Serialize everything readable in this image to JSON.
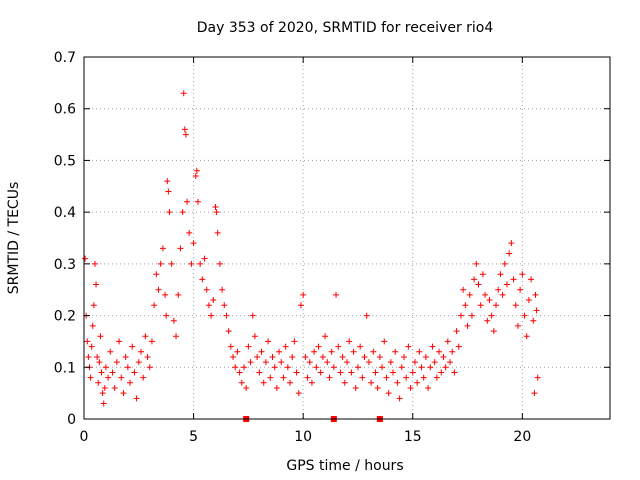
{
  "chart_data": {
    "type": "scatter",
    "title": "Day 353 of 2020, SRMTID for receiver rio4",
    "xlabel": "GPS time / hours",
    "ylabel": "SRMTID / TECUs",
    "xlim": [
      0,
      24
    ],
    "ylim": [
      0,
      0.7
    ],
    "x_ticks": [
      0,
      5,
      10,
      15,
      20
    ],
    "x_tick_labels": [
      "0",
      "5",
      "10",
      "15",
      "20"
    ],
    "y_ticks": [
      0,
      0.1,
      0.2,
      0.3,
      0.4,
      0.5,
      0.6,
      0.7
    ],
    "y_tick_labels": [
      "0",
      "0.1",
      "0.2",
      "0.3",
      "0.4",
      "0.5",
      "0.6",
      "0.7"
    ],
    "grid": true,
    "series": [
      {
        "name": "SRMTID",
        "marker": "plus",
        "color": "#ff0000",
        "points": [
          [
            0.05,
            0.31
          ],
          [
            0.1,
            0.2
          ],
          [
            0.15,
            0.15
          ],
          [
            0.2,
            0.12
          ],
          [
            0.25,
            0.1
          ],
          [
            0.3,
            0.08
          ],
          [
            0.35,
            0.14
          ],
          [
            0.4,
            0.18
          ],
          [
            0.45,
            0.22
          ],
          [
            0.5,
            0.3
          ],
          [
            0.55,
            0.26
          ],
          [
            0.6,
            0.12
          ],
          [
            0.65,
            0.07
          ],
          [
            0.7,
            0.11
          ],
          [
            0.75,
            0.16
          ],
          [
            0.8,
            0.09
          ],
          [
            0.85,
            0.05
          ],
          [
            0.9,
            0.03
          ],
          [
            0.95,
            0.06
          ],
          [
            1.0,
            0.1
          ],
          [
            1.1,
            0.08
          ],
          [
            1.2,
            0.13
          ],
          [
            1.3,
            0.09
          ],
          [
            1.4,
            0.06
          ],
          [
            1.5,
            0.11
          ],
          [
            1.6,
            0.15
          ],
          [
            1.7,
            0.08
          ],
          [
            1.8,
            0.05
          ],
          [
            1.9,
            0.12
          ],
          [
            2.0,
            0.1
          ],
          [
            2.1,
            0.07
          ],
          [
            2.2,
            0.14
          ],
          [
            2.3,
            0.09
          ],
          [
            2.4,
            0.04
          ],
          [
            2.5,
            0.11
          ],
          [
            2.6,
            0.13
          ],
          [
            2.7,
            0.08
          ],
          [
            2.8,
            0.16
          ],
          [
            2.9,
            0.12
          ],
          [
            3.0,
            0.1
          ],
          [
            3.1,
            0.15
          ],
          [
            3.2,
            0.22
          ],
          [
            3.3,
            0.28
          ],
          [
            3.4,
            0.25
          ],
          [
            3.5,
            0.3
          ],
          [
            3.6,
            0.33
          ],
          [
            3.7,
            0.24
          ],
          [
            3.75,
            0.2
          ],
          [
            3.8,
            0.46
          ],
          [
            3.85,
            0.44
          ],
          [
            3.9,
            0.4
          ],
          [
            4.0,
            0.3
          ],
          [
            4.1,
            0.19
          ],
          [
            4.2,
            0.16
          ],
          [
            4.3,
            0.24
          ],
          [
            4.4,
            0.33
          ],
          [
            4.5,
            0.4
          ],
          [
            4.55,
            0.63
          ],
          [
            4.6,
            0.56
          ],
          [
            4.65,
            0.55
          ],
          [
            4.7,
            0.42
          ],
          [
            4.8,
            0.36
          ],
          [
            4.9,
            0.3
          ],
          [
            5.0,
            0.34
          ],
          [
            5.1,
            0.47
          ],
          [
            5.15,
            0.48
          ],
          [
            5.2,
            0.42
          ],
          [
            5.3,
            0.3
          ],
          [
            5.4,
            0.27
          ],
          [
            5.5,
            0.31
          ],
          [
            5.6,
            0.25
          ],
          [
            5.7,
            0.22
          ],
          [
            5.8,
            0.2
          ],
          [
            5.9,
            0.23
          ],
          [
            6.0,
            0.41
          ],
          [
            6.05,
            0.4
          ],
          [
            6.1,
            0.36
          ],
          [
            6.2,
            0.3
          ],
          [
            6.3,
            0.25
          ],
          [
            6.4,
            0.22
          ],
          [
            6.5,
            0.2
          ],
          [
            6.6,
            0.17
          ],
          [
            6.7,
            0.14
          ],
          [
            6.8,
            0.12
          ],
          [
            6.9,
            0.1
          ],
          [
            7.0,
            0.13
          ],
          [
            7.1,
            0.09
          ],
          [
            7.2,
            0.07
          ],
          [
            7.3,
            0.1
          ],
          [
            7.4,
            0.06
          ],
          [
            7.5,
            0.14
          ],
          [
            7.6,
            0.11
          ],
          [
            7.7,
            0.2
          ],
          [
            7.8,
            0.16
          ],
          [
            7.9,
            0.12
          ],
          [
            8.0,
            0.09
          ],
          [
            8.1,
            0.13
          ],
          [
            8.2,
            0.07
          ],
          [
            8.3,
            0.11
          ],
          [
            8.4,
            0.15
          ],
          [
            8.5,
            0.08
          ],
          [
            8.6,
            0.12
          ],
          [
            8.7,
            0.1
          ],
          [
            8.8,
            0.06
          ],
          [
            8.9,
            0.13
          ],
          [
            9.0,
            0.11
          ],
          [
            9.1,
            0.08
          ],
          [
            9.2,
            0.14
          ],
          [
            9.3,
            0.1
          ],
          [
            9.4,
            0.07
          ],
          [
            9.5,
            0.12
          ],
          [
            9.6,
            0.15
          ],
          [
            9.7,
            0.09
          ],
          [
            9.8,
            0.05
          ],
          [
            9.9,
            0.22
          ],
          [
            10.0,
            0.24
          ],
          [
            10.1,
            0.12
          ],
          [
            10.2,
            0.08
          ],
          [
            10.3,
            0.11
          ],
          [
            10.4,
            0.07
          ],
          [
            10.5,
            0.13
          ],
          [
            10.6,
            0.1
          ],
          [
            10.7,
            0.14
          ],
          [
            10.8,
            0.09
          ],
          [
            10.9,
            0.12
          ],
          [
            11.0,
            0.16
          ],
          [
            11.1,
            0.11
          ],
          [
            11.2,
            0.08
          ],
          [
            11.3,
            0.13
          ],
          [
            11.4,
            0.1
          ],
          [
            11.5,
            0.24
          ],
          [
            11.6,
            0.14
          ],
          [
            11.7,
            0.09
          ],
          [
            11.8,
            0.12
          ],
          [
            11.9,
            0.07
          ],
          [
            12.0,
            0.11
          ],
          [
            12.1,
            0.15
          ],
          [
            12.2,
            0.09
          ],
          [
            12.3,
            0.13
          ],
          [
            12.4,
            0.06
          ],
          [
            12.5,
            0.1
          ],
          [
            12.6,
            0.14
          ],
          [
            12.7,
            0.08
          ],
          [
            12.8,
            0.12
          ],
          [
            12.9,
            0.2
          ],
          [
            13.0,
            0.11
          ],
          [
            13.1,
            0.07
          ],
          [
            13.2,
            0.13
          ],
          [
            13.3,
            0.09
          ],
          [
            13.4,
            0.06
          ],
          [
            13.5,
            0.12
          ],
          [
            13.6,
            0.1
          ],
          [
            13.7,
            0.15
          ],
          [
            13.8,
            0.08
          ],
          [
            13.9,
            0.05
          ],
          [
            14.0,
            0.11
          ],
          [
            14.1,
            0.09
          ],
          [
            14.2,
            0.13
          ],
          [
            14.3,
            0.07
          ],
          [
            14.4,
            0.04
          ],
          [
            14.5,
            0.1
          ],
          [
            14.6,
            0.12
          ],
          [
            14.7,
            0.08
          ],
          [
            14.8,
            0.14
          ],
          [
            14.9,
            0.06
          ],
          [
            15.0,
            0.09
          ],
          [
            15.1,
            0.11
          ],
          [
            15.2,
            0.07
          ],
          [
            15.3,
            0.13
          ],
          [
            15.4,
            0.1
          ],
          [
            15.5,
            0.08
          ],
          [
            15.6,
            0.12
          ],
          [
            15.7,
            0.06
          ],
          [
            15.8,
            0.1
          ],
          [
            15.9,
            0.14
          ],
          [
            16.0,
            0.11
          ],
          [
            16.1,
            0.08
          ],
          [
            16.2,
            0.13
          ],
          [
            16.3,
            0.09
          ],
          [
            16.4,
            0.12
          ],
          [
            16.5,
            0.1
          ],
          [
            16.6,
            0.15
          ],
          [
            16.7,
            0.11
          ],
          [
            16.8,
            0.13
          ],
          [
            16.9,
            0.09
          ],
          [
            17.0,
            0.17
          ],
          [
            17.1,
            0.14
          ],
          [
            17.2,
            0.2
          ],
          [
            17.3,
            0.25
          ],
          [
            17.4,
            0.22
          ],
          [
            17.5,
            0.18
          ],
          [
            17.6,
            0.24
          ],
          [
            17.7,
            0.2
          ],
          [
            17.8,
            0.27
          ],
          [
            17.9,
            0.3
          ],
          [
            18.0,
            0.26
          ],
          [
            18.1,
            0.22
          ],
          [
            18.2,
            0.28
          ],
          [
            18.3,
            0.24
          ],
          [
            18.4,
            0.19
          ],
          [
            18.5,
            0.23
          ],
          [
            18.6,
            0.2
          ],
          [
            18.7,
            0.17
          ],
          [
            18.8,
            0.22
          ],
          [
            18.9,
            0.25
          ],
          [
            19.0,
            0.28
          ],
          [
            19.1,
            0.24
          ],
          [
            19.2,
            0.3
          ],
          [
            19.3,
            0.26
          ],
          [
            19.4,
            0.32
          ],
          [
            19.5,
            0.34
          ],
          [
            19.6,
            0.27
          ],
          [
            19.7,
            0.22
          ],
          [
            19.8,
            0.18
          ],
          [
            19.9,
            0.25
          ],
          [
            20.0,
            0.28
          ],
          [
            20.1,
            0.2
          ],
          [
            20.2,
            0.16
          ],
          [
            20.3,
            0.23
          ],
          [
            20.4,
            0.27
          ],
          [
            20.5,
            0.19
          ],
          [
            20.55,
            0.05
          ],
          [
            20.6,
            0.24
          ],
          [
            20.65,
            0.21
          ],
          [
            20.7,
            0.08
          ]
        ]
      }
    ],
    "gap_markers": [
      {
        "x": 7.4,
        "y": 0
      },
      {
        "x": 11.4,
        "y": 0
      },
      {
        "x": 13.5,
        "y": 0
      }
    ]
  }
}
